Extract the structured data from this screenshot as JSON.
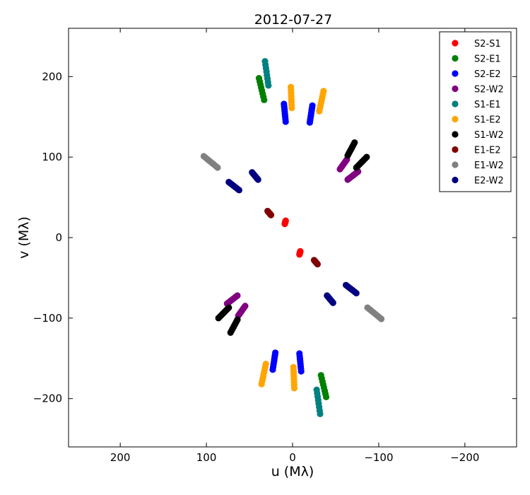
{
  "chart_data": {
    "type": "scatter",
    "title": "2012-07-27",
    "xlabel": "u (Mλ)",
    "ylabel": "v (Mλ)",
    "xlim": [
      260,
      -260
    ],
    "ylim": [
      -260,
      260
    ],
    "xticks": [
      200,
      100,
      0,
      -100,
      -200
    ],
    "xtick_labels": [
      "200",
      "100",
      "0",
      "−100",
      "−200"
    ],
    "yticks": [
      -200,
      -100,
      0,
      100,
      200
    ],
    "ytick_labels": [
      "−200",
      "−100",
      "0",
      "100",
      "200"
    ],
    "grid": false,
    "legend_position": "top-right",
    "series": [
      {
        "name": "S2-S1",
        "color": "#ff0000",
        "segments": [
          [
            [
              8,
              21
            ],
            [
              9,
              17
            ]
          ],
          [
            [
              -8,
              -21
            ],
            [
              -9,
              -17
            ]
          ]
        ]
      },
      {
        "name": "S2-E1",
        "color": "#008000",
        "segments": [
          [
            [
              39,
              198
            ],
            [
              33,
              171
            ]
          ],
          [
            [
              -39,
              -198
            ],
            [
              -33,
              -171
            ]
          ]
        ]
      },
      {
        "name": "S2-E2",
        "color": "#0000ff",
        "segments": [
          [
            [
              10,
              166
            ],
            [
              8,
              144
            ]
          ],
          [
            [
              -23,
              164
            ],
            [
              -20,
              143
            ]
          ],
          [
            [
              -10,
              -166
            ],
            [
              -8,
              -144
            ]
          ],
          [
            [
              23,
              -164
            ],
            [
              20,
              -143
            ]
          ]
        ]
      },
      {
        "name": "S2-W2",
        "color": "#800080",
        "segments": [
          [
            [
              -63,
              97
            ],
            [
              -55,
              85
            ]
          ],
          [
            [
              -76,
              82
            ],
            [
              -64,
              72
            ]
          ],
          [
            [
              63,
              -97
            ],
            [
              55,
              -85
            ]
          ],
          [
            [
              76,
              -82
            ],
            [
              64,
              -72
            ]
          ]
        ]
      },
      {
        "name": "S1-E1",
        "color": "#008080",
        "segments": [
          [
            [
              32,
              219
            ],
            [
              28,
              189
            ]
          ],
          [
            [
              -32,
              -219
            ],
            [
              -28,
              -189
            ]
          ]
        ]
      },
      {
        "name": "S1-E2",
        "color": "#ffa500",
        "segments": [
          [
            [
              2,
              187
            ],
            [
              1,
              161
            ]
          ],
          [
            [
              -36,
              182
            ],
            [
              -31,
              157
            ]
          ],
          [
            [
              -2,
              -187
            ],
            [
              -1,
              -161
            ]
          ],
          [
            [
              36,
              -182
            ],
            [
              31,
              -157
            ]
          ]
        ]
      },
      {
        "name": "S1-W2",
        "color": "#000000",
        "segments": [
          [
            [
              -72,
              118
            ],
            [
              -64,
              102
            ]
          ],
          [
            [
              -86,
              100
            ],
            [
              -74,
              87
            ]
          ],
          [
            [
              72,
              -118
            ],
            [
              64,
              -102
            ]
          ],
          [
            [
              86,
              -100
            ],
            [
              74,
              -87
            ]
          ]
        ]
      },
      {
        "name": "E1-E2",
        "color": "#800000",
        "segments": [
          [
            [
              29,
              33
            ],
            [
              25,
              28
            ]
          ],
          [
            [
              -29,
              -33
            ],
            [
              -25,
              -28
            ]
          ]
        ]
      },
      {
        "name": "E1-W2",
        "color": "#808080",
        "segments": [
          [
            [
              103,
              101
            ],
            [
              87,
              87
            ]
          ],
          [
            [
              -103,
              -101
            ],
            [
              -87,
              -87
            ]
          ]
        ]
      },
      {
        "name": "E2-W2",
        "color": "#000080",
        "segments": [
          [
            [
              47,
              81
            ],
            [
              40,
              72
            ]
          ],
          [
            [
              74,
              69
            ],
            [
              62,
              59
            ]
          ],
          [
            [
              -47,
              -81
            ],
            [
              -40,
              -72
            ]
          ],
          [
            [
              -74,
              -69
            ],
            [
              -62,
              -59
            ]
          ]
        ]
      }
    ]
  }
}
